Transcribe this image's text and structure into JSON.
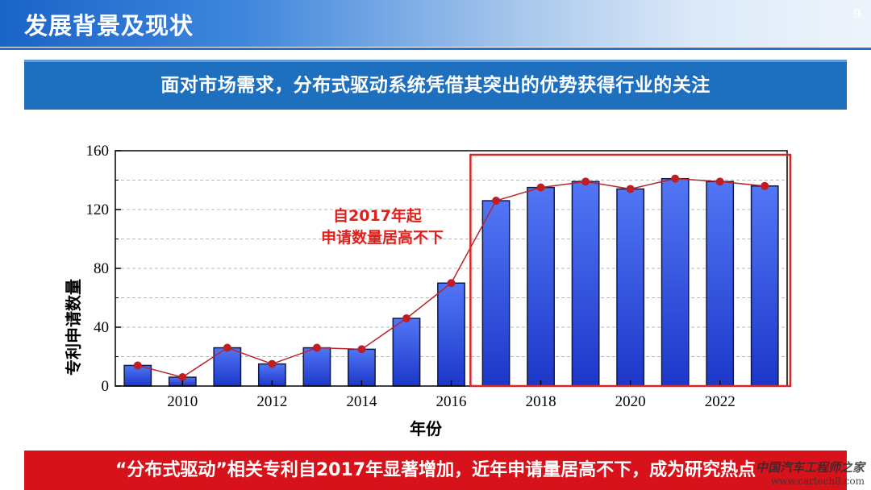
{
  "header": {
    "title": "发展背景及现状",
    "page_number": "9"
  },
  "banner": {
    "text": "面对市场需求，分布式驱动系统凭借其突出的优势获得行业的关注"
  },
  "chart_data": {
    "type": "bar",
    "years": [
      2009,
      2010,
      2011,
      2012,
      2013,
      2014,
      2015,
      2016,
      2017,
      2018,
      2019,
      2020,
      2021,
      2022,
      2023
    ],
    "values": [
      14,
      6,
      26,
      15,
      26,
      25,
      46,
      70,
      126,
      135,
      139,
      134,
      141,
      139,
      136
    ],
    "xticks": [
      "2010",
      "2012",
      "2014",
      "2016",
      "2018",
      "2020",
      "2022"
    ],
    "yticks": [
      "0",
      "40",
      "80",
      "120",
      "160"
    ],
    "ylim": [
      0,
      160
    ],
    "xlabel": "年份",
    "ylabel": "专利申请数量",
    "overlay_line": true,
    "highlight_range": [
      2017,
      2023
    ],
    "annotation": [
      "自2017年起",
      "申请数量居高不下"
    ],
    "colors": {
      "bar_top": "#5276f5",
      "bar_bottom": "#1c37c9",
      "bar_edge": "#101a40",
      "line": "#b8242a",
      "marker": "#c01e24",
      "highlight_box": "#d62828",
      "annotation": "#e0201c"
    }
  },
  "footer": {
    "text": "“分布式驱动”相关专利自2017年显著增加，近年申请量居高不下，成为研究热点"
  },
  "watermark": {
    "line1": "中国汽车工程师之家",
    "line2": "www.cartech8.com"
  }
}
